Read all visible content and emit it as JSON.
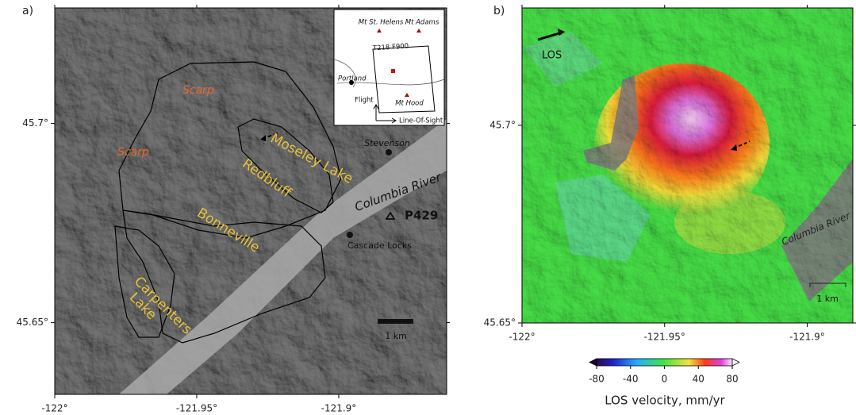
{
  "figure": {
    "panel_a": {
      "label": "a)",
      "xlim": [
        -122,
        -121.862
      ],
      "ylim": [
        45.632,
        45.729
      ],
      "xticks": [
        {
          "value": -122,
          "label": "-122°"
        },
        {
          "value": -121.95,
          "label": "-121.95°"
        },
        {
          "value": -121.9,
          "label": "-121.9°"
        }
      ],
      "yticks": [
        {
          "value": 45.7,
          "label": "45.7°"
        },
        {
          "value": 45.65,
          "label": "45.65°"
        }
      ],
      "labels": {
        "scarp_upper": "Scarp",
        "scarp_lower": "Scarp",
        "moseley": "Moseley Lake",
        "redbluff": "Redbluff",
        "bonneville": "Bonneville",
        "carpenters": [
          "Carpenters",
          "Lake"
        ],
        "river": "Columbia River",
        "stevenson": "Stevenson",
        "cascade_locks": "Cascade Locks",
        "station": "P429",
        "scale": "1 km"
      },
      "inset": {
        "st_helens": "Mt St. Helens",
        "adams": "Mt Adams",
        "track": "T218 F900",
        "portland": "Portland",
        "flight": "Flight",
        "hood": "Mt Hood",
        "los": "Line-Of-Sight"
      }
    },
    "panel_b": {
      "label": "b)",
      "xlim": [
        -122,
        -121.884
      ],
      "ylim": [
        45.65,
        45.7297
      ],
      "xticks": [
        {
          "value": -122,
          "label": "-122°"
        },
        {
          "value": -121.95,
          "label": "-121.95°"
        },
        {
          "value": -121.9,
          "label": "-121.9°"
        }
      ],
      "yticks": [
        {
          "value": 45.7,
          "label": "45.7°"
        },
        {
          "value": 45.65,
          "label": "45.65°"
        }
      ],
      "labels": {
        "los": "LOS",
        "river": "Columbia River",
        "scale": "1 km"
      }
    },
    "colorbar": {
      "lim": [
        -80,
        80
      ],
      "ticks": [
        -80,
        -40,
        0,
        40,
        80
      ],
      "label": "LOS velocity, mm/yr"
    }
  }
}
